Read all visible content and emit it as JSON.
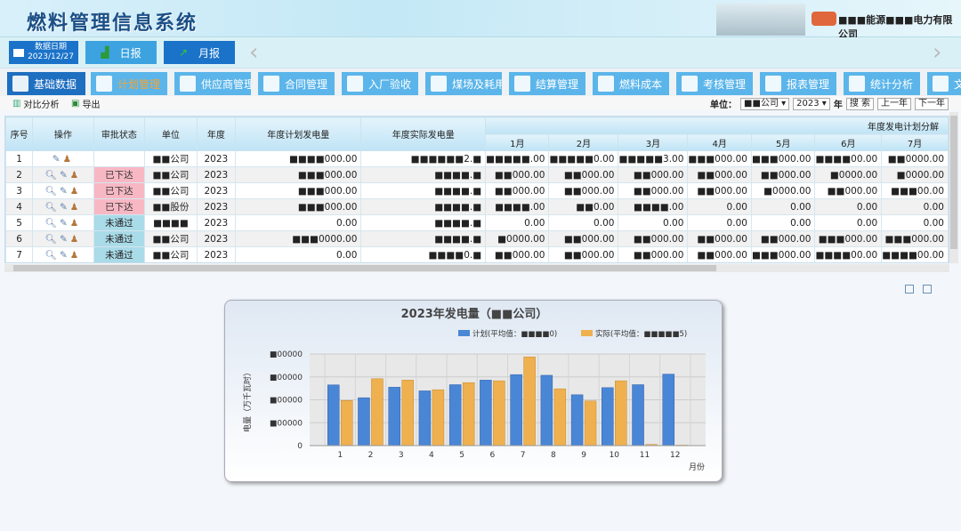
{
  "header": {
    "title": "燃料管理信息系统",
    "company": "■■■能源■■■电力有限公司"
  },
  "nav": {
    "date_label": "数据日期",
    "date_value": "2023/12/27",
    "daily": "日报",
    "monthly": "月报",
    "prev": "‹",
    "next": "›"
  },
  "menu": [
    {
      "label": "基础数据",
      "icon": "database-icon"
    },
    {
      "label": "计划管理",
      "icon": "document-icon"
    },
    {
      "label": "供应商管理",
      "icon": "users-icon"
    },
    {
      "label": "合同管理",
      "icon": "word-doc-icon"
    },
    {
      "label": "入厂验收",
      "icon": "truck-icon"
    },
    {
      "label": "煤场及耗用",
      "icon": "mountain-icon"
    },
    {
      "label": "结算管理",
      "icon": "dollar-icon"
    },
    {
      "label": "燃料成本",
      "icon": "calculator-icon"
    },
    {
      "label": "考核管理",
      "icon": "checklist-icon"
    },
    {
      "label": "报表管理",
      "icon": "clipboard-icon"
    },
    {
      "label": "统计分析",
      "icon": "chart-icon"
    },
    {
      "label": "文",
      "icon": "file-icon"
    }
  ],
  "toolbar": {
    "compare": "对比分析",
    "export": "导出",
    "unit_label": "单位：",
    "unit_value": "■■公司",
    "year_value": "2023",
    "year_label": "年",
    "search": "搜 索",
    "prev_year": "上一年",
    "next_year": "下一年"
  },
  "table": {
    "headers": [
      "序号",
      "操作",
      "审批状态",
      "单位",
      "年度",
      "年度计划发电量",
      "年度实际发电量"
    ],
    "group_header": "年度发电计划分解",
    "months": [
      "1月",
      "2月",
      "3月",
      "4月",
      "5月",
      "6月",
      "7月"
    ],
    "rows": [
      {
        "no": "1",
        "status": "",
        "unit": "■■公司",
        "year": "2023",
        "plan": "■■■■000.00",
        "actual": "■■■■■■2.■",
        "m": [
          "■■■■■.00",
          "■■■■■0.00",
          "■■■■■3.00",
          "■■■000.00",
          "■■■000.00",
          "■■■■00.00",
          "■■0000.00"
        ]
      },
      {
        "no": "2",
        "status": "已下达",
        "unit": "■■公司",
        "year": "2023",
        "plan": "■■■000.00",
        "actual": "■■■■.■",
        "m": [
          "■■000.00",
          "■■000.00",
          "■■000.00",
          "■■000.00",
          "■■000.00",
          "■0000.00",
          "■0000.00"
        ]
      },
      {
        "no": "3",
        "status": "已下达",
        "unit": "■■公司",
        "year": "2023",
        "plan": "■■■000.00",
        "actual": "■■■■.■",
        "m": [
          "■■000.00",
          "■■000.00",
          "■■000.00",
          "■■000.00",
          "■0000.00",
          "■■000.00",
          "■■■00.00"
        ]
      },
      {
        "no": "4",
        "status": "已下达",
        "unit": "■■股份",
        "year": "2023",
        "plan": "■■■000.00",
        "actual": "■■■■.■",
        "m": [
          "■■■■.00",
          "■■0.00",
          "■■■■.00",
          "0.00",
          "0.00",
          "0.00",
          "0.00"
        ]
      },
      {
        "no": "5",
        "status": "未通过",
        "unit": "■■■■",
        "year": "2023",
        "plan": "0.00",
        "actual": "■■■■.■",
        "m": [
          "0.00",
          "0.00",
          "0.00",
          "0.00",
          "0.00",
          "0.00",
          "0.00"
        ]
      },
      {
        "no": "6",
        "status": "未通过",
        "unit": "■■公司",
        "year": "2023",
        "plan": "■■■0000.00",
        "actual": "■■■■.■",
        "m": [
          "■0000.00",
          "■■000.00",
          "■■000.00",
          "■■000.00",
          "■■000.00",
          "■■■000.00",
          "■■■000.00"
        ]
      },
      {
        "no": "7",
        "status": "未通过",
        "unit": "■■公司",
        "year": "2023",
        "plan": "0.00",
        "actual": "■■■■0.■",
        "m": [
          "■■000.00",
          "■■000.00",
          "■■000.00",
          "■■000.00",
          "■■■000.00",
          "■■■■00.00",
          "■■■■00.00"
        ]
      }
    ]
  },
  "colors": {
    "plan": "#4a86d6",
    "actual": "#efb04f",
    "pending_red": "#f7b8c4",
    "rejected_blue": "#a9dbe8",
    "brand": "#1a73c9"
  },
  "chart_data": {
    "type": "bar",
    "title": "2023年发电量（■■公司）",
    "xlabel": "月份",
    "ylabel": "电量（万千瓦时）",
    "categories": [
      "1",
      "2",
      "3",
      "4",
      "5",
      "6",
      "7",
      "8",
      "9",
      "10",
      "11",
      "12"
    ],
    "yticks": [
      "0",
      "■00000",
      "■00000",
      "■00000",
      "■00000"
    ],
    "ylim": [
      0,
      4
    ],
    "grid": true,
    "legend": "top-right",
    "series": [
      {
        "name": "计划(平均值：■■■■0)",
        "values": [
          2.65,
          2.09,
          2.55,
          2.39,
          2.66,
          2.86,
          3.1,
          3.07,
          2.22,
          2.53,
          2.66,
          3.12
        ]
      },
      {
        "name": "实际(平均值：■■■■■5)",
        "values": [
          1.97,
          2.92,
          2.86,
          2.44,
          2.75,
          2.83,
          3.87,
          2.48,
          1.95,
          2.83,
          0.05,
          0.02
        ]
      }
    ]
  }
}
